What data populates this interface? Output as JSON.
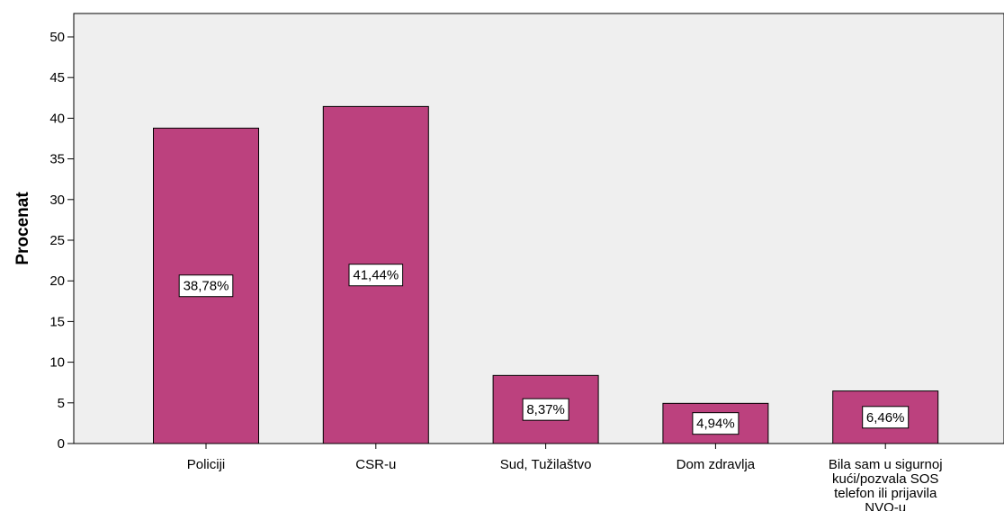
{
  "chart_data": {
    "type": "bar",
    "ylabel": "Procenat",
    "xlabel": "",
    "ylim": [
      0,
      50
    ],
    "yticks": [
      0,
      5,
      10,
      15,
      20,
      25,
      30,
      35,
      40,
      45,
      50
    ],
    "grid": false,
    "categories": [
      [
        "Policiji"
      ],
      [
        "CSR-u"
      ],
      [
        "Sud, Tužilaštvo"
      ],
      [
        "Dom zdravlja"
      ],
      [
        "Bila sam u sigurnoj",
        "kući/pozvala SOS",
        "telefon ili prijavila",
        "NVO-u"
      ]
    ],
    "values": [
      38.78,
      41.44,
      8.37,
      4.94,
      6.46
    ],
    "data_labels": [
      "38,78%",
      "41,44%",
      "8,37%",
      "4,94%",
      "6,46%"
    ],
    "colors": {
      "bar": "#bc417e",
      "plot_background": "#efefef",
      "axis": "#000000"
    }
  }
}
